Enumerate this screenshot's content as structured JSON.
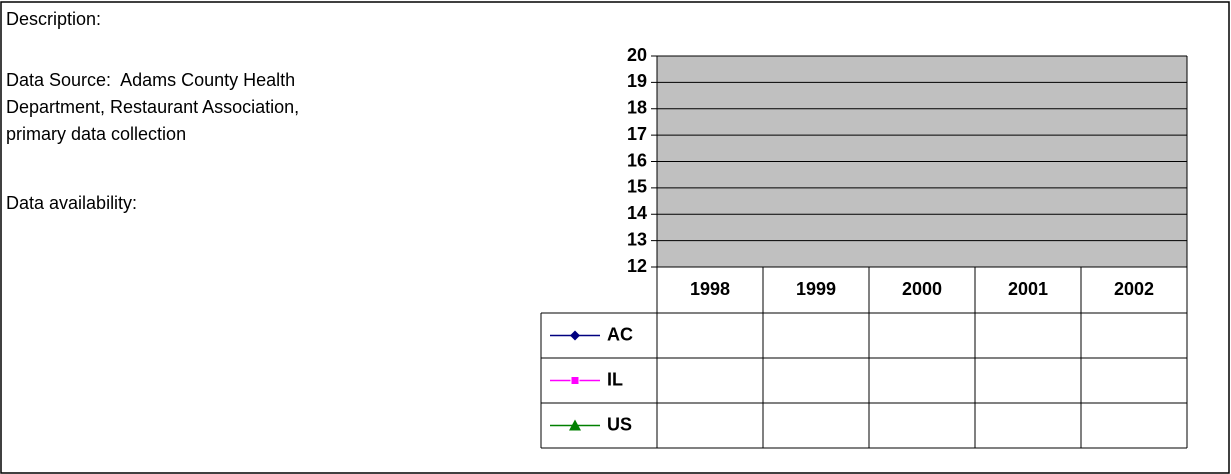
{
  "description": {
    "label": "Description:",
    "data_source": [
      "Data Source:  Adams County Health",
      "Department, Restaurant Association,",
      "primary data collection"
    ],
    "availability": "Data availability:"
  },
  "chart_data": {
    "type": "line",
    "categories": [
      "1998",
      "1999",
      "2000",
      "2001",
      "2002"
    ],
    "series": [
      {
        "name": "AC",
        "color": "#000080",
        "marker": "diamond",
        "values": [
          null,
          null,
          null,
          null,
          null
        ]
      },
      {
        "name": "IL",
        "color": "#ff00ff",
        "marker": "square",
        "values": [
          null,
          null,
          null,
          null,
          null
        ]
      },
      {
        "name": "US",
        "color": "#008000",
        "marker": "triangle",
        "values": [
          null,
          null,
          null,
          null,
          null
        ]
      }
    ],
    "ylim": [
      12,
      20
    ],
    "yticks": [
      12,
      13,
      14,
      15,
      16,
      17,
      18,
      19,
      20
    ],
    "grid": true,
    "plot_background": "#c0c0c0",
    "data_table": true
  }
}
